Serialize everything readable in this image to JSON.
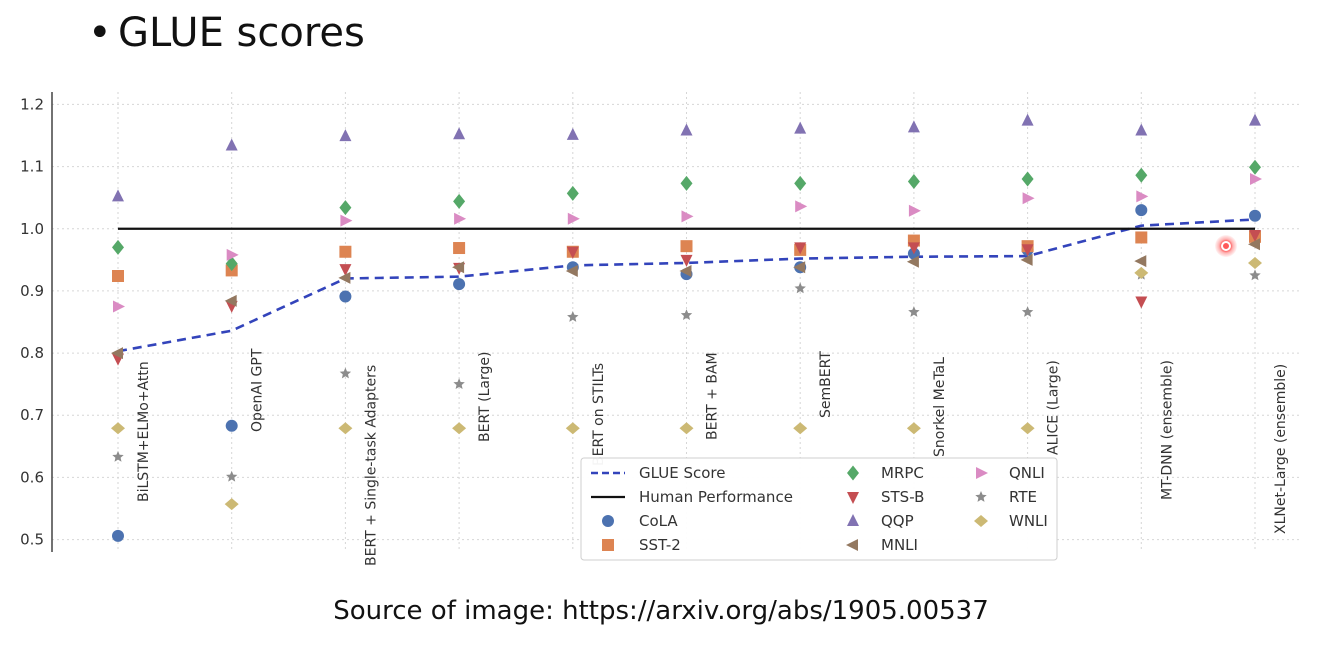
{
  "slide": {
    "bullet": "•",
    "title": "GLUE scores",
    "source": "Source of image: https://arxiv.org/abs/1905.00537"
  },
  "chart_data": {
    "type": "scatter",
    "title": "",
    "xlabel": "",
    "ylabel": "",
    "ylim": [
      0.48,
      1.22
    ],
    "yticks": [
      "0.5",
      "0.6",
      "0.7",
      "0.8",
      "0.9",
      "1.0",
      "1.1",
      "1.2"
    ],
    "grid": true,
    "legend_position": "bottom-center",
    "categories": [
      "BiLSTM+ELMo+Attn",
      "OpenAI GPT",
      "BERT + Single-task Adapters",
      "BERT (Large)",
      "BERT on STILTs",
      "BERT + BAM",
      "SemBERT",
      "Snorkel MeTaL",
      "ALICE (Large)",
      "MT-DNN (ensemble)",
      "XLNet-Large (ensemble)"
    ],
    "lines": [
      {
        "name": "GLUE Score",
        "color": "#3344bb",
        "style": "dashed",
        "values": [
          0.803,
          0.836,
          0.92,
          0.923,
          0.941,
          0.945,
          0.952,
          0.955,
          0.956,
          1.005,
          1.015
        ]
      },
      {
        "name": "Human Performance",
        "color": "#111111",
        "style": "solid",
        "values": [
          1.0,
          1.0,
          1.0,
          1.0,
          1.0,
          1.0,
          1.0,
          1.0,
          1.0,
          1.0,
          1.0
        ]
      }
    ],
    "series": [
      {
        "name": "CoLA",
        "color": "#4c72b0",
        "marker": "circle",
        "values": [
          0.506,
          0.683,
          0.891,
          0.911,
          0.938,
          0.927,
          0.938,
          0.96,
          0.966,
          1.03,
          1.021
        ]
      },
      {
        "name": "SST-2",
        "color": "#dd8452",
        "marker": "square",
        "values": [
          0.924,
          0.933,
          0.963,
          0.969,
          0.963,
          0.972,
          0.966,
          0.981,
          0.972,
          0.986,
          0.987
        ]
      },
      {
        "name": "MRPC",
        "color": "#55a868",
        "marker": "diamond",
        "values": [
          0.97,
          0.944,
          1.034,
          1.044,
          1.057,
          1.073,
          1.073,
          1.076,
          1.08,
          1.086,
          1.099
        ]
      },
      {
        "name": "STS-B",
        "color": "#c44e52",
        "marker": "triangle-down",
        "values": [
          0.791,
          0.876,
          0.935,
          0.937,
          0.963,
          0.95,
          0.97,
          0.97,
          0.967,
          0.883,
          0.99
        ]
      },
      {
        "name": "QQP",
        "color": "#8172b2",
        "marker": "triangle-up",
        "values": [
          1.052,
          1.134,
          1.149,
          1.152,
          1.151,
          1.158,
          1.161,
          1.163,
          1.174,
          1.158,
          1.174
        ]
      },
      {
        "name": "MNLI",
        "color": "#937860",
        "marker": "triangle-left",
        "values": [
          0.8,
          0.884,
          0.921,
          0.938,
          0.932,
          0.932,
          0.938,
          0.947,
          0.95,
          0.948,
          0.975
        ]
      },
      {
        "name": "QNLI",
        "color": "#da8bc3",
        "marker": "triangle-right",
        "values": [
          0.875,
          0.958,
          1.013,
          1.016,
          1.016,
          1.02,
          1.036,
          1.029,
          1.049,
          1.052,
          1.08
        ]
      },
      {
        "name": "RTE",
        "color": "#8c8c8c",
        "marker": "star",
        "values": [
          0.633,
          0.601,
          0.767,
          0.75,
          0.858,
          0.861,
          0.904,
          0.866,
          0.866,
          0.926,
          0.925
        ]
      },
      {
        "name": "WNLI",
        "color": "#ccb974",
        "marker": "diamond-thin",
        "values": [
          0.679,
          0.557,
          0.679,
          0.679,
          0.679,
          0.679,
          0.679,
          0.679,
          0.679,
          0.929,
          0.945
        ]
      }
    ]
  }
}
